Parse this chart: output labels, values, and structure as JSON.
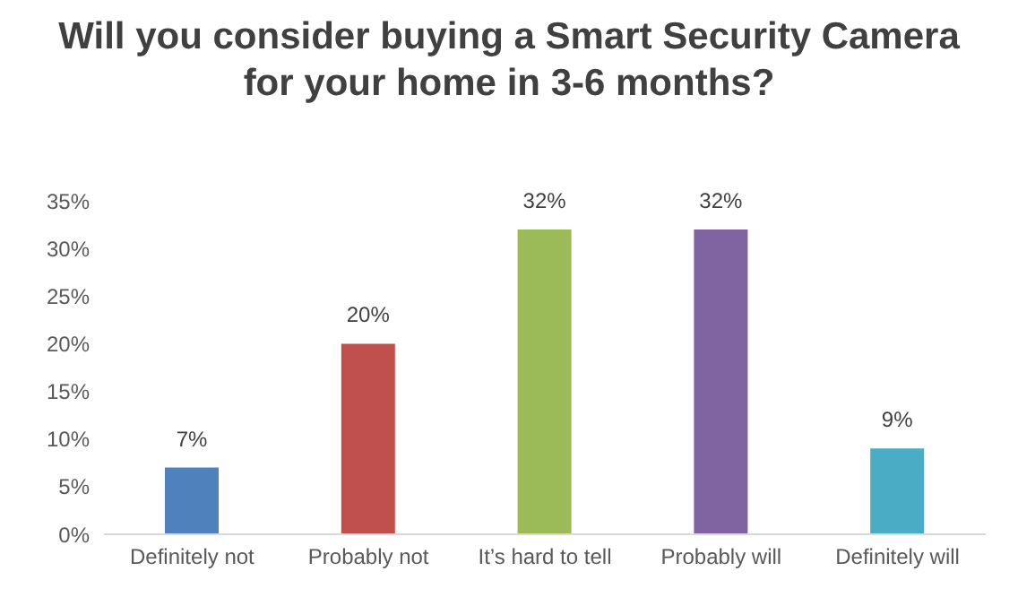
{
  "chart_data": {
    "type": "bar",
    "title": "Will you consider buying a Smart Security Camera for your home in 3-6 months?",
    "categories": [
      "Definitely not",
      "Probably not",
      "It’s hard to tell",
      "Probably will",
      "Definitely will"
    ],
    "values": [
      7,
      20,
      32,
      32,
      9
    ],
    "colors": [
      "#4f81bd",
      "#c0504d",
      "#9bbb59",
      "#8064a2",
      "#4bacc6"
    ],
    "value_labels": [
      "7%",
      "20%",
      "32%",
      "32%",
      "9%"
    ],
    "ylim": [
      0,
      35
    ],
    "yticks": [
      {
        "value": 0,
        "label": "0%"
      },
      {
        "value": 5,
        "label": "5%"
      },
      {
        "value": 10,
        "label": "10%"
      },
      {
        "value": 15,
        "label": "15%"
      },
      {
        "value": 20,
        "label": "20%"
      },
      {
        "value": 25,
        "label": "25%"
      },
      {
        "value": 30,
        "label": "30%"
      },
      {
        "value": 35,
        "label": "35%"
      }
    ],
    "grid": false,
    "legend": false
  }
}
